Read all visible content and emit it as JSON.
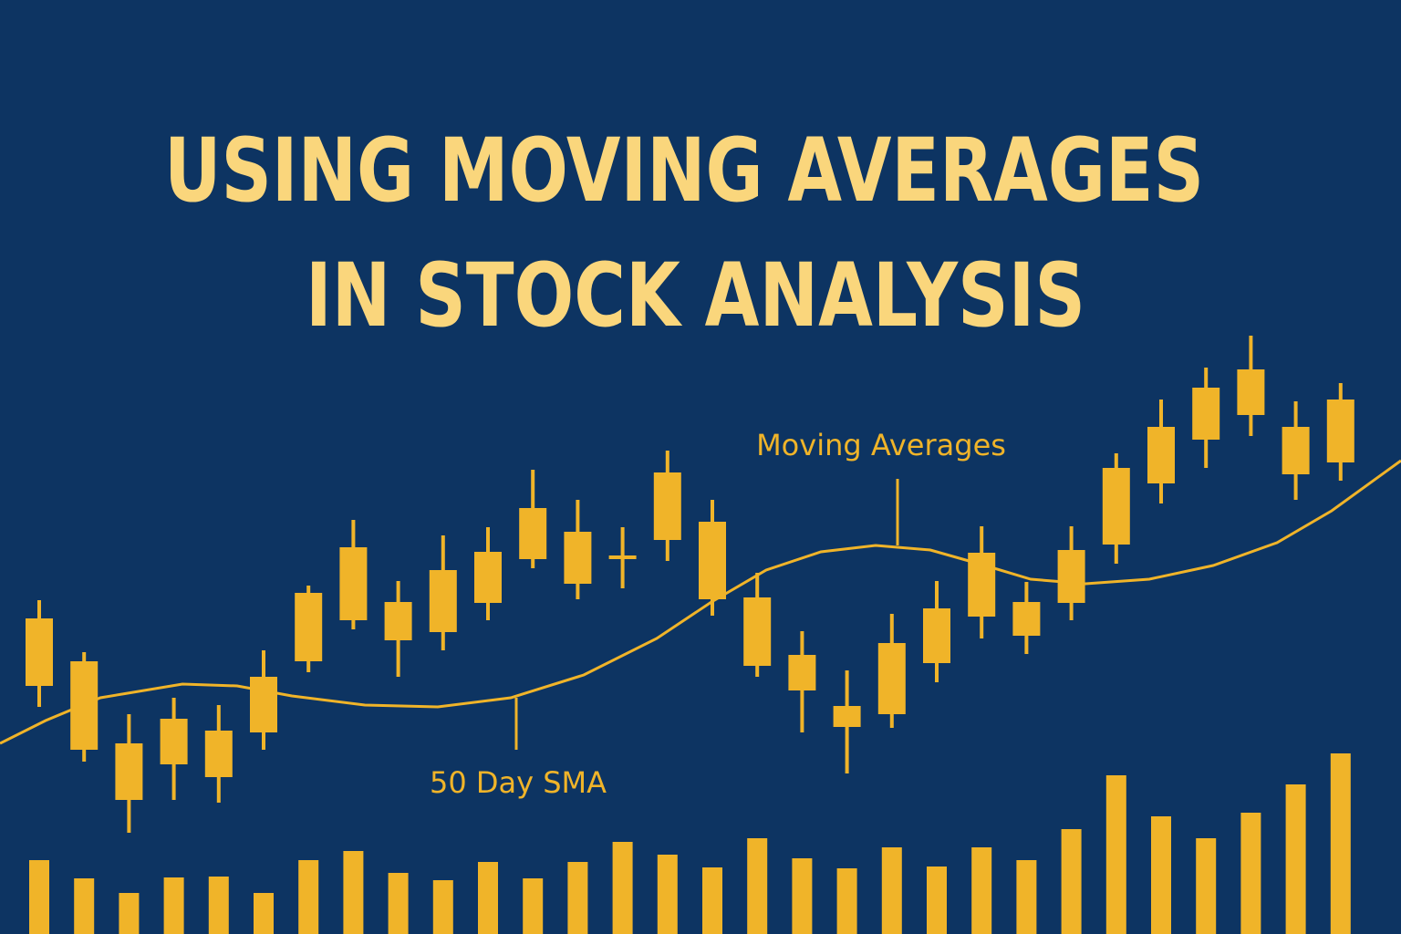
{
  "chart_data": {
    "type": "candlestick",
    "title": [
      "USING MOVING AVERAGES",
      "IN STOCK ANALYSIS"
    ],
    "color": "#f0b429",
    "candles": [
      {
        "open": 272,
        "high": 366,
        "low": 249,
        "close": 346
      },
      {
        "open": 299,
        "high": 309,
        "low": 189,
        "close": 202
      },
      {
        "open": 209,
        "high": 241,
        "low": 111,
        "close": 147
      },
      {
        "open": 186,
        "high": 259,
        "low": 147,
        "close": 236
      },
      {
        "open": 172,
        "high": 251,
        "low": 144,
        "close": 223
      },
      {
        "open": 221,
        "high": 311,
        "low": 202,
        "close": 282
      },
      {
        "open": 299,
        "high": 382,
        "low": 287,
        "close": 374
      },
      {
        "open": 344,
        "high": 454,
        "low": 334,
        "close": 424
      },
      {
        "open": 364,
        "high": 387,
        "low": 282,
        "close": 322
      },
      {
        "open": 331,
        "high": 437,
        "low": 311,
        "close": 399
      },
      {
        "open": 363,
        "high": 446,
        "low": 344,
        "close": 419
      },
      {
        "open": 411,
        "high": 509,
        "low": 401,
        "close": 467
      },
      {
        "open": 441,
        "high": 476,
        "low": 367,
        "close": 384
      },
      {
        "open": 411,
        "high": 446,
        "low": 379,
        "close": 415
      },
      {
        "open": 432,
        "high": 530,
        "low": 409,
        "close": 506
      },
      {
        "open": 452,
        "high": 476,
        "low": 349,
        "close": 367
      },
      {
        "open": 369,
        "high": 396,
        "low": 282,
        "close": 294
      },
      {
        "open": 306,
        "high": 332,
        "low": 221,
        "close": 267
      },
      {
        "open": 250,
        "high": 289,
        "low": 176,
        "close": 227
      },
      {
        "open": 241,
        "high": 351,
        "low": 226,
        "close": 319
      },
      {
        "open": 297,
        "high": 387,
        "low": 276,
        "close": 357
      },
      {
        "open": 348,
        "high": 447,
        "low": 324,
        "close": 418
      },
      {
        "open": 364,
        "high": 386,
        "low": 307,
        "close": 327
      },
      {
        "open": 363,
        "high": 447,
        "low": 344,
        "close": 421
      },
      {
        "open": 427,
        "high": 527,
        "low": 406,
        "close": 511
      },
      {
        "open": 494,
        "high": 586,
        "low": 472,
        "close": 556
      },
      {
        "open": 542,
        "high": 621,
        "low": 511,
        "close": 599
      },
      {
        "open": 569,
        "high": 656,
        "low": 546,
        "close": 619
      },
      {
        "open": 556,
        "high": 584,
        "low": 476,
        "close": 504
      },
      {
        "open": 517,
        "high": 604,
        "low": 497,
        "close": 586
      }
    ],
    "volume": [
      81,
      61,
      45,
      62,
      63,
      45,
      81,
      91,
      67,
      59,
      79,
      61,
      79,
      101,
      87,
      73,
      105,
      83,
      72,
      95,
      74,
      95,
      81,
      115,
      174,
      129,
      105,
      133,
      164,
      198
    ],
    "sma": {
      "x": [
        0,
        50,
        110,
        200,
        260,
        320,
        400,
        480,
        560,
        640,
        720,
        780,
        840,
        900,
        960,
        1020,
        1080,
        1130,
        1190,
        1260,
        1330,
        1400,
        1460,
        1536
      ],
      "values": [
        209,
        234,
        259,
        274,
        272,
        261,
        251,
        249,
        259,
        284,
        324,
        364,
        399,
        419,
        426,
        421,
        404,
        389,
        384,
        389,
        404,
        429,
        464,
        519
      ]
    },
    "annotations": [
      "Moving Averages",
      "50 Day SMA"
    ]
  }
}
